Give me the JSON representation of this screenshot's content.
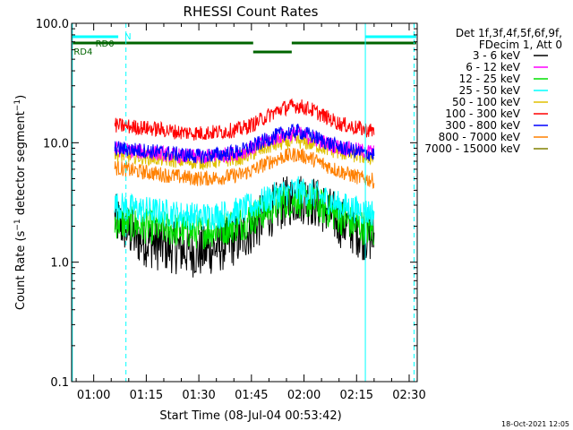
{
  "chart_data": {
    "type": "line",
    "title": "RHESSI Count Rates",
    "xlabel": "Start Time (08-Jul-04 00:53:42)",
    "ylabel": "Count Rate (s⁻¹ detector segment⁻¹)",
    "y_scale": "log",
    "ylim": [
      0.1,
      100
    ],
    "y_ticks": [
      {
        "value": 0.1,
        "label": "0.1"
      },
      {
        "value": 1,
        "label": "1.0"
      },
      {
        "value": 10,
        "label": "10.0"
      },
      {
        "value": 100,
        "label": "100.0"
      }
    ],
    "xlim_minutes": [
      53.7,
      152.3
    ],
    "x_ticks": [
      {
        "minute": 60,
        "label": "01:00"
      },
      {
        "minute": 75,
        "label": "01:15"
      },
      {
        "minute": 90,
        "label": "01:30"
      },
      {
        "minute": 105,
        "label": "01:45"
      },
      {
        "minute": 120,
        "label": "02:00"
      },
      {
        "minute": 135,
        "label": "02:15"
      },
      {
        "minute": 150,
        "label": "02:30"
      }
    ],
    "legend": {
      "placement": "right",
      "header": [
        "Det 1f,3f,4f,5f,6f,9f,",
        "FDecim 1, Att 0"
      ]
    },
    "series": [
      {
        "name": "3 - 6 keV",
        "color": "#000000",
        "x": [
          66,
          72,
          78,
          84,
          90,
          96,
          102,
          106,
          110,
          114,
          118,
          122,
          126,
          130,
          134,
          137,
          140
        ],
        "y": [
          2.3,
          1.6,
          1.4,
          1.3,
          1.2,
          1.35,
          1.6,
          2.0,
          2.6,
          3.1,
          3.5,
          3.3,
          2.8,
          2.2,
          1.9,
          1.7,
          1.6
        ]
      },
      {
        "name": "6 - 12 keV",
        "color": "#ff00ff",
        "x": [
          66,
          72,
          78,
          84,
          90,
          96,
          102,
          106,
          110,
          114,
          118,
          122,
          126,
          130,
          134,
          137,
          140
        ],
        "y": [
          8.8,
          8.5,
          8.2,
          7.8,
          7.6,
          7.8,
          8.3,
          9.2,
          10.5,
          11.5,
          12,
          11,
          10,
          9.2,
          8.8,
          8.5,
          8.4
        ]
      },
      {
        "name": "12 - 25 keV",
        "color": "#00e000",
        "x": [
          66,
          72,
          78,
          84,
          90,
          96,
          102,
          106,
          110,
          114,
          118,
          122,
          126,
          130,
          134,
          137,
          140
        ],
        "y": [
          2.2,
          2.05,
          1.95,
          1.85,
          1.8,
          1.9,
          2.1,
          2.4,
          2.8,
          3.2,
          3.4,
          3.2,
          2.8,
          2.4,
          2.1,
          1.95,
          1.85
        ]
      },
      {
        "name": "25 - 50 keV",
        "color": "#00ffff",
        "x": [
          66,
          72,
          78,
          84,
          90,
          96,
          102,
          106,
          110,
          114,
          118,
          122,
          126,
          130,
          134,
          137,
          140
        ],
        "y": [
          3.0,
          2.8,
          2.65,
          2.5,
          2.4,
          2.5,
          2.7,
          3.0,
          3.4,
          3.8,
          4.0,
          3.8,
          3.4,
          3.0,
          2.8,
          2.65,
          2.6
        ]
      },
      {
        "name": "50 - 100 keV",
        "color": "#e0c000",
        "x": [
          66,
          72,
          78,
          84,
          90,
          96,
          102,
          106,
          110,
          114,
          118,
          122,
          126,
          130,
          134,
          137,
          140
        ],
        "y": [
          8.0,
          7.7,
          7.4,
          7.1,
          6.9,
          7.1,
          7.5,
          8.3,
          9.3,
          10,
          10.4,
          9.8,
          9.0,
          8.3,
          7.9,
          7.6,
          7.5
        ]
      },
      {
        "name": "100 - 300 keV",
        "color": "#ff0000",
        "x": [
          66,
          72,
          78,
          84,
          90,
          96,
          102,
          106,
          110,
          114,
          118,
          122,
          126,
          130,
          134,
          137,
          140
        ],
        "y": [
          14,
          13.5,
          13,
          12.3,
          12,
          12.3,
          13,
          14.5,
          17,
          19.5,
          20.5,
          19,
          16.5,
          14.5,
          13.5,
          13,
          12.5
        ]
      },
      {
        "name": "300 - 800 keV",
        "color": "#0000ff",
        "x": [
          66,
          72,
          78,
          84,
          90,
          96,
          102,
          106,
          110,
          114,
          118,
          122,
          126,
          130,
          134,
          137,
          140
        ],
        "y": [
          9.0,
          8.7,
          8.4,
          8.0,
          7.7,
          8.0,
          8.5,
          9.5,
          10.8,
          12,
          12.5,
          11.5,
          10.2,
          9.2,
          8.6,
          8.2,
          8.0
        ]
      },
      {
        "name": "800 - 7000 keV",
        "color": "#ff8000",
        "x": [
          66,
          72,
          78,
          84,
          90,
          96,
          102,
          106,
          110,
          114,
          118,
          122,
          126,
          130,
          134,
          137,
          140
        ],
        "y": [
          6.2,
          5.8,
          5.5,
          5.2,
          5.0,
          5.1,
          5.4,
          6.0,
          6.9,
          7.6,
          8.0,
          7.4,
          6.5,
          5.8,
          5.3,
          5.0,
          4.8
        ]
      },
      {
        "name": "7000 - 15000 keV",
        "color": "#808000",
        "x": [],
        "y": []
      }
    ],
    "annotations": [
      {
        "text": "RD0",
        "color": "#006400"
      },
      {
        "text": "RD4",
        "color": "#006400"
      },
      {
        "text": "N",
        "color": "#00ffff"
      }
    ],
    "timestamp": "18-Oct-2021 12:05"
  }
}
